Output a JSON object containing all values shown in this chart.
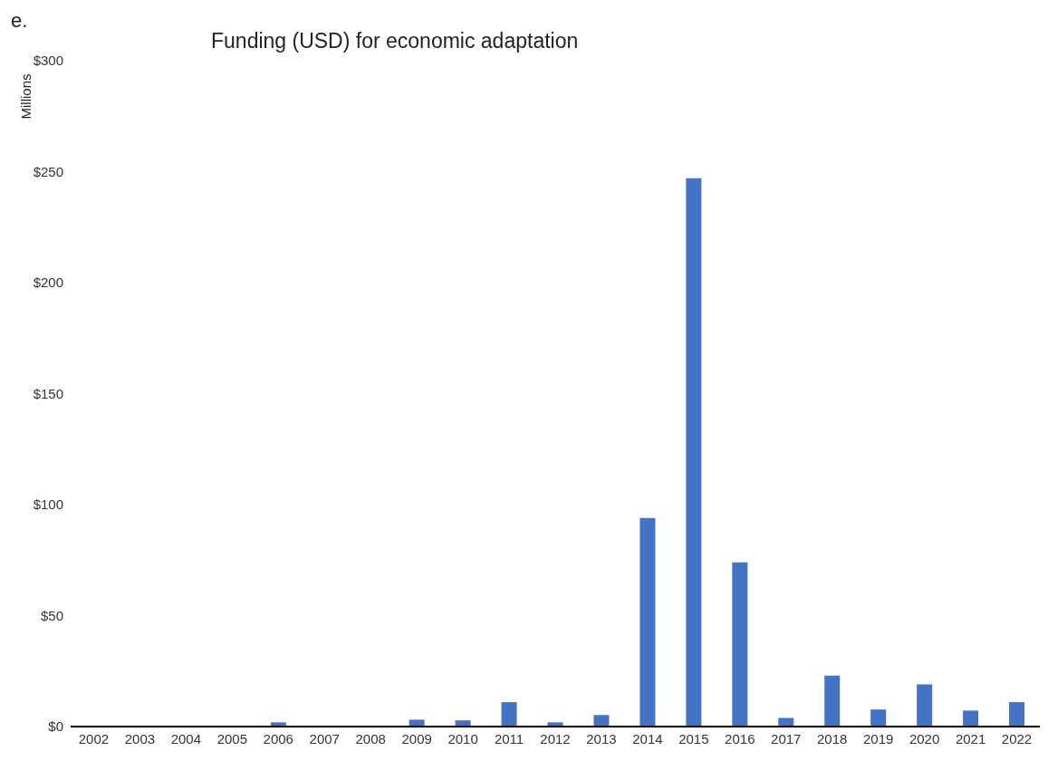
{
  "chart_data": {
    "type": "bar",
    "title": "Funding (USD) for economic adaptation",
    "ylabel": "Millions",
    "annotations": [
      "e."
    ],
    "categories": [
      "2002",
      "2003",
      "2004",
      "2005",
      "2006",
      "2007",
      "2008",
      "2009",
      "2010",
      "2011",
      "2012",
      "2013",
      "2014",
      "2015",
      "2016",
      "2017",
      "2018",
      "2019",
      "2020",
      "2021",
      "2022"
    ],
    "values": [
      0,
      0,
      0,
      0,
      1.9,
      0,
      0,
      3.1,
      2.8,
      11,
      1.9,
      5.2,
      94,
      247,
      74,
      3.9,
      23,
      7.7,
      19,
      7.2,
      11
    ],
    "color": "#4472c4",
    "ylim": [
      0,
      300
    ],
    "yticks": [
      {
        "value": 0,
        "label": "$0"
      },
      {
        "value": 50,
        "label": "$50"
      },
      {
        "value": 100,
        "label": "$100"
      },
      {
        "value": 150,
        "label": "$150"
      },
      {
        "value": 200,
        "label": "$200"
      },
      {
        "value": 250,
        "label": "$250"
      },
      {
        "value": 300,
        "label": "$300"
      }
    ],
    "grid": false
  }
}
